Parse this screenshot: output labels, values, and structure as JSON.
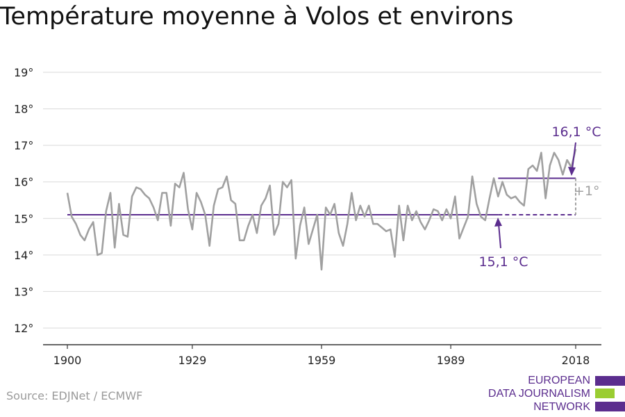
{
  "title": "Température moyenne à Volos et environs",
  "source": "Source: EDJNet / ECMWF",
  "logo": {
    "lines": [
      "EUROPEAN",
      "DATA JOURNALISM",
      "NETWORK"
    ],
    "bar_colors": [
      "#5b2d8e",
      "#9acd32",
      "#5b2d8e"
    ]
  },
  "colors": {
    "series": "#a0a0a0",
    "accent": "#5b2d8e",
    "delta": "#a0a0a0",
    "grid": "#d9d9d9",
    "axis": "#333333"
  },
  "chart_data": {
    "type": "line",
    "title": "Température moyenne à Volos et environs",
    "xlabel": "",
    "ylabel": "",
    "xlim": [
      1900,
      2018
    ],
    "ylim": [
      12,
      19
    ],
    "x_ticks": [
      1900,
      1929,
      1959,
      1989,
      2018
    ],
    "y_ticks": [
      12,
      13,
      14,
      15,
      16,
      17,
      18,
      19
    ],
    "y_tick_labels": [
      "12°",
      "13°",
      "14°",
      "15°",
      "16°",
      "17°",
      "18°",
      "19°"
    ],
    "grid": "horizontal",
    "series": [
      {
        "x": [
          1900,
          1901,
          1902,
          1903,
          1904,
          1905,
          1906,
          1907,
          1908,
          1909,
          1910,
          1911,
          1912,
          1913,
          1914,
          1915,
          1916,
          1917,
          1918,
          1919,
          1920,
          1921,
          1922,
          1923,
          1924,
          1925,
          1926,
          1927,
          1928,
          1929,
          1930,
          1931,
          1932,
          1933,
          1934,
          1935,
          1936,
          1937,
          1938,
          1939,
          1940,
          1941,
          1942,
          1943,
          1944,
          1945,
          1946,
          1947,
          1948,
          1949,
          1950,
          1951,
          1952,
          1953,
          1954,
          1955,
          1956,
          1957,
          1958,
          1959,
          1960,
          1961,
          1962,
          1963,
          1964,
          1965,
          1966,
          1967,
          1968,
          1969,
          1970,
          1971,
          1972,
          1973,
          1974,
          1975,
          1976,
          1977,
          1978,
          1979,
          1980,
          1981,
          1982,
          1983,
          1984,
          1985,
          1986,
          1987,
          1988,
          1989,
          1990,
          1991,
          1992,
          1993,
          1994,
          1995,
          1996,
          1997,
          1998,
          1999,
          2000,
          2001,
          2002,
          2003,
          2004,
          2005,
          2006,
          2007,
          2008,
          2009,
          2010,
          2011,
          2012,
          2013,
          2014,
          2015,
          2016,
          2017,
          2018
        ],
        "values": [
          15.7,
          15.05,
          14.85,
          14.55,
          14.4,
          14.7,
          14.9,
          14.0,
          14.05,
          15.2,
          15.7,
          14.2,
          15.4,
          14.55,
          14.5,
          15.6,
          15.85,
          15.8,
          15.65,
          15.55,
          15.3,
          14.95,
          15.7,
          15.7,
          14.8,
          15.95,
          15.85,
          16.25,
          15.25,
          14.7,
          15.7,
          15.45,
          15.1,
          14.25,
          15.35,
          15.8,
          15.85,
          16.15,
          15.5,
          15.4,
          14.4,
          14.4,
          14.8,
          15.1,
          14.6,
          15.35,
          15.55,
          15.9,
          14.55,
          14.85,
          16.0,
          15.85,
          16.05,
          13.9,
          14.8,
          15.3,
          14.3,
          14.7,
          15.1,
          13.6,
          15.3,
          15.1,
          15.4,
          14.6,
          14.25,
          14.85,
          15.7,
          14.95,
          15.35,
          15.05,
          15.35,
          14.85,
          14.85,
          14.75,
          14.65,
          14.7,
          13.95,
          15.35,
          14.4,
          15.35,
          14.95,
          15.2,
          14.9,
          14.7,
          14.95,
          15.25,
          15.2,
          14.95,
          15.25,
          15.0,
          15.6,
          14.45,
          14.75,
          15.05,
          16.15,
          15.4,
          15.05,
          14.95,
          15.55,
          16.1,
          15.6,
          16.0,
          15.65,
          15.55,
          15.6,
          15.45,
          15.35,
          16.35,
          16.45,
          16.3,
          16.8,
          15.55,
          16.45,
          16.8,
          16.6,
          16.2,
          16.6,
          16.4,
          16.9
        ]
      }
    ],
    "reference_lines": [
      {
        "label": "15,1 °C",
        "value": 15.1,
        "x_start": 1900,
        "x_end": 2018
      },
      {
        "label": "16,1 °C",
        "value": 16.1,
        "x_start": 2000,
        "x_end": 2018
      }
    ],
    "annotations": {
      "delta_label": "+1°"
    }
  }
}
